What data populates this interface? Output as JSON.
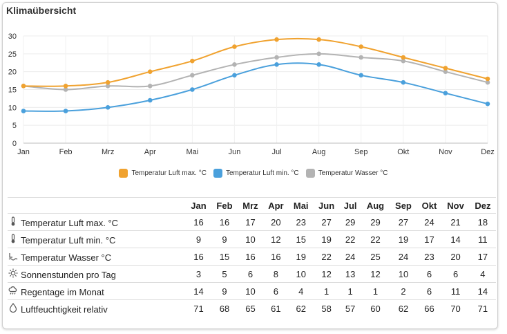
{
  "title": "Klimaübersicht",
  "chart_data": {
    "type": "line",
    "categories": [
      "Jan",
      "Feb",
      "Mrz",
      "Apr",
      "Mai",
      "Jun",
      "Jul",
      "Aug",
      "Sep",
      "Okt",
      "Nov",
      "Dez"
    ],
    "ylim": [
      0,
      30
    ],
    "yticks": [
      0,
      5,
      10,
      15,
      20,
      25,
      30
    ],
    "grid": true,
    "smooth": true,
    "legend_position": "bottom",
    "series": [
      {
        "name": "Temperatur Luft max. °C",
        "color": "#f0a22f",
        "values": [
          16,
          16,
          17,
          20,
          23,
          27,
          29,
          29,
          27,
          24,
          21,
          18
        ]
      },
      {
        "name": "Temperatur Luft min. °C",
        "color": "#4aa0dc",
        "values": [
          9,
          9,
          10,
          12,
          15,
          19,
          22,
          22,
          19,
          17,
          14,
          11
        ]
      },
      {
        "name": "Temperatur Wasser °C",
        "color": "#b3b3b3",
        "values": [
          16,
          15,
          16,
          16,
          19,
          22,
          24,
          25,
          24,
          23,
          20,
          17
        ]
      }
    ]
  },
  "table": {
    "header_label": "",
    "months": [
      "Jan",
      "Feb",
      "Mrz",
      "Apr",
      "Mai",
      "Jun",
      "Jul",
      "Aug",
      "Sep",
      "Okt",
      "Nov",
      "Dez"
    ],
    "rows": [
      {
        "icon": "thermometer-icon",
        "label": "Temperatur Luft max. °C",
        "values": [
          "16",
          "16",
          "17",
          "20",
          "23",
          "27",
          "29",
          "29",
          "27",
          "24",
          "21",
          "18"
        ]
      },
      {
        "icon": "thermometer-icon",
        "label": "Temperatur Luft min. °C",
        "values": [
          "9",
          "9",
          "10",
          "12",
          "15",
          "19",
          "22",
          "22",
          "19",
          "17",
          "14",
          "11"
        ]
      },
      {
        "icon": "water-icon",
        "label": "Temperatur Wasser °C",
        "values": [
          "16",
          "15",
          "16",
          "16",
          "19",
          "22",
          "24",
          "25",
          "24",
          "23",
          "20",
          "17"
        ]
      },
      {
        "icon": "sun-icon",
        "label": "Sonnenstunden pro Tag",
        "values": [
          "3",
          "5",
          "6",
          "8",
          "10",
          "12",
          "13",
          "12",
          "10",
          "6",
          "6",
          "4"
        ]
      },
      {
        "icon": "rain-cloud-icon",
        "label": "Regentage im Monat",
        "values": [
          "14",
          "9",
          "10",
          "6",
          "4",
          "1",
          "1",
          "1",
          "2",
          "6",
          "11",
          "14"
        ]
      },
      {
        "icon": "droplet-icon",
        "label": "Luftfeuchtigkeit relativ",
        "values": [
          "71",
          "68",
          "65",
          "61",
          "62",
          "58",
          "57",
          "60",
          "62",
          "66",
          "70",
          "71"
        ]
      }
    ]
  }
}
